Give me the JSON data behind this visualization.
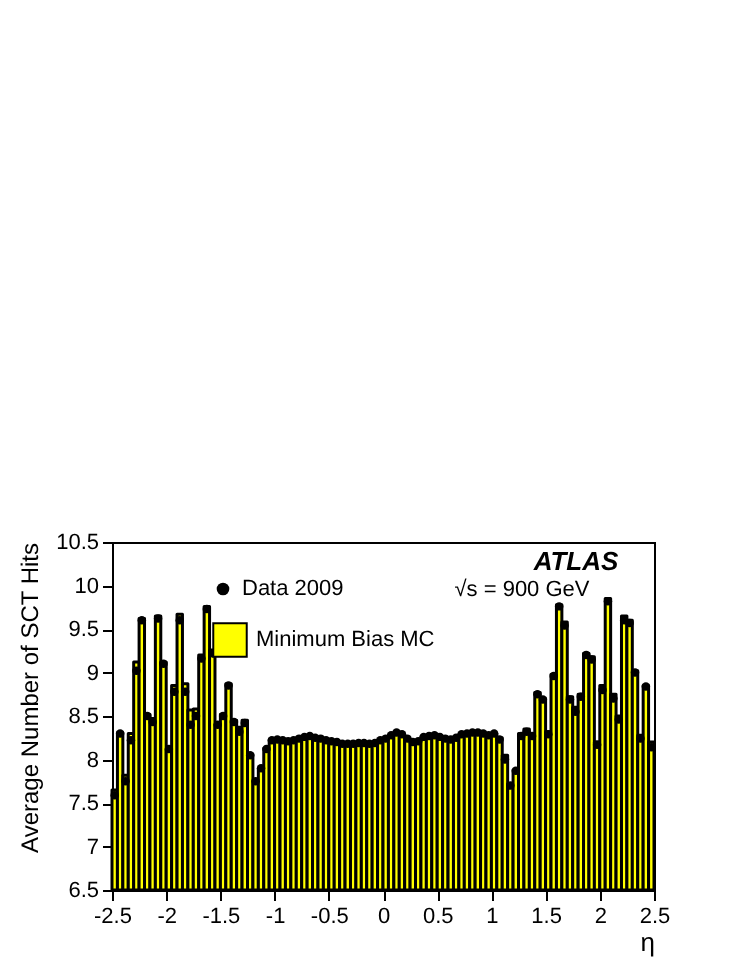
{
  "chart_data": {
    "type": "histogram",
    "xlabel": "η",
    "ylabel": "Average Number of SCT Hits",
    "annotations": [
      "ATLAS",
      "√s = 900 GeV"
    ],
    "bins": [
      -2.5,
      -2.45,
      -2.4,
      -2.35,
      -2.3,
      -2.25,
      -2.2,
      -2.15,
      -2.1,
      -2.05,
      -2,
      -1.95,
      -1.9,
      -1.85,
      -1.8,
      -1.75,
      -1.7,
      -1.65,
      -1.6,
      -1.55,
      -1.5,
      -1.45,
      -1.4,
      -1.35,
      -1.3,
      -1.25,
      -1.2,
      -1.15,
      -1.1,
      -1.05,
      -1,
      -0.95,
      -0.9,
      -0.85,
      -0.8,
      -0.75,
      -0.7,
      -0.65,
      -0.6,
      -0.55,
      -0.5,
      -0.45,
      -0.4,
      -0.35,
      -0.3,
      -0.25,
      -0.2,
      -0.15,
      -0.1,
      -0.05,
      0,
      0.05,
      0.1,
      0.15,
      0.2,
      0.25,
      0.3,
      0.35,
      0.4,
      0.45,
      0.5,
      0.55,
      0.6,
      0.65,
      0.7,
      0.75,
      0.8,
      0.85,
      0.9,
      0.95,
      1,
      1.05,
      1.1,
      1.15,
      1.2,
      1.25,
      1.3,
      1.35,
      1.4,
      1.45,
      1.5,
      1.55,
      1.6,
      1.65,
      1.7,
      1.75,
      1.8,
      1.85,
      1.9,
      1.95,
      2,
      2.05,
      2.1,
      2.15,
      2.2,
      2.25,
      2.3,
      2.35,
      2.4,
      2.45,
      2.5
    ],
    "series": [
      {
        "name": "Minimum Bias MC",
        "type": "histogram",
        "color": "#ffff00",
        "values": [
          7.65,
          8.31,
          7.82,
          8.3,
          9.12,
          9.62,
          8.52,
          8.47,
          9.65,
          9.12,
          8.12,
          8.85,
          9.67,
          8.87,
          8.57,
          8.58,
          9.2,
          9.76,
          9.26,
          8.4,
          8.52,
          8.87,
          8.45,
          8.37,
          8.45,
          8.06,
          7.76,
          7.9,
          8.13,
          8.23,
          8.23,
          8.22,
          8.21,
          8.22,
          8.24,
          8.26,
          8.27,
          8.25,
          8.24,
          8.22,
          8.21,
          8.2,
          8.18,
          8.18,
          8.18,
          8.19,
          8.19,
          8.18,
          8.19,
          8.22,
          8.24,
          8.28,
          8.31,
          8.29,
          8.24,
          8.2,
          8.21,
          8.26,
          8.27,
          8.28,
          8.26,
          8.24,
          8.23,
          8.25,
          8.29,
          8.3,
          8.31,
          8.31,
          8.3,
          8.28,
          8.3,
          8.25,
          8.05,
          7.72,
          7.88,
          8.3,
          8.35,
          8.3,
          8.77,
          8.7,
          8.32,
          8.98,
          9.78,
          9.58,
          8.72,
          8.6,
          8.75,
          9.22,
          9.18,
          8.2,
          8.85,
          9.85,
          8.75,
          8.5,
          9.65,
          9.6,
          9.02,
          8.28,
          8.85,
          8.2
        ]
      },
      {
        "name": "Data 2009",
        "type": "scatter",
        "color": "#000000",
        "x": [
          -2.475,
          -2.425,
          -2.375,
          -2.325,
          -2.275,
          -2.225,
          -2.175,
          -2.125,
          -2.075,
          -2.025,
          -1.975,
          -1.925,
          -1.875,
          -1.825,
          -1.775,
          -1.725,
          -1.675,
          -1.625,
          -1.575,
          -1.525,
          -1.475,
          -1.425,
          -1.375,
          -1.325,
          -1.275,
          -1.225,
          -1.175,
          -1.125,
          -1.075,
          -1.025,
          -0.975,
          -0.925,
          -0.875,
          -0.825,
          -0.775,
          -0.725,
          -0.675,
          -0.625,
          -0.575,
          -0.525,
          -0.475,
          -0.425,
          -0.375,
          -0.325,
          -0.275,
          -0.225,
          -0.175,
          -0.125,
          -0.075,
          -0.025,
          0.025,
          0.075,
          0.125,
          0.175,
          0.225,
          0.275,
          0.325,
          0.375,
          0.425,
          0.475,
          0.525,
          0.575,
          0.625,
          0.675,
          0.725,
          0.775,
          0.825,
          0.875,
          0.925,
          0.975,
          1.025,
          1.075,
          1.125,
          1.175,
          1.225,
          1.275,
          1.325,
          1.375,
          1.425,
          1.475,
          1.525,
          1.575,
          1.625,
          1.675,
          1.725,
          1.775,
          1.825,
          1.875,
          1.925,
          1.975,
          2.025,
          2.075,
          2.125,
          2.175,
          2.225,
          2.275,
          2.325,
          2.375,
          2.425,
          2.475
        ],
        "values": [
          7.59,
          8.3,
          7.75,
          8.22,
          9.02,
          9.6,
          8.5,
          8.43,
          9.62,
          9.1,
          8.12,
          8.78,
          9.6,
          8.78,
          8.4,
          8.5,
          9.16,
          9.73,
          9.22,
          8.4,
          8.5,
          8.85,
          8.43,
          8.32,
          8.42,
          8.05,
          7.75,
          7.9,
          8.12,
          8.22,
          8.23,
          8.22,
          8.21,
          8.22,
          8.24,
          8.26,
          8.27,
          8.25,
          8.24,
          8.22,
          8.21,
          8.2,
          8.18,
          8.18,
          8.18,
          8.19,
          8.19,
          8.18,
          8.19,
          8.22,
          8.24,
          8.28,
          8.31,
          8.29,
          8.24,
          8.2,
          8.21,
          8.26,
          8.27,
          8.28,
          8.26,
          8.24,
          8.23,
          8.25,
          8.29,
          8.3,
          8.31,
          8.31,
          8.3,
          8.28,
          8.3,
          8.23,
          8.0,
          7.7,
          7.87,
          8.27,
          8.32,
          8.27,
          8.75,
          8.69,
          8.29,
          8.96,
          9.76,
          9.54,
          8.69,
          8.55,
          8.72,
          9.2,
          9.15,
          8.17,
          8.8,
          9.82,
          8.7,
          8.46,
          9.6,
          9.57,
          9.0,
          8.24,
          8.84,
          8.14
        ]
      }
    ],
    "xlim": [
      -2.5,
      2.5
    ],
    "xticks": [
      -2.5,
      -2,
      -1.5,
      -1,
      -0.5,
      0,
      0.5,
      1,
      1.5,
      2,
      2.5
    ],
    "ylim": [
      6.5,
      10.5
    ],
    "yticks": [
      6.5,
      7,
      7.5,
      8,
      8.5,
      9,
      9.5,
      10,
      10.5
    ],
    "grid": false,
    "legend": "top left",
    "marker": "circle"
  }
}
